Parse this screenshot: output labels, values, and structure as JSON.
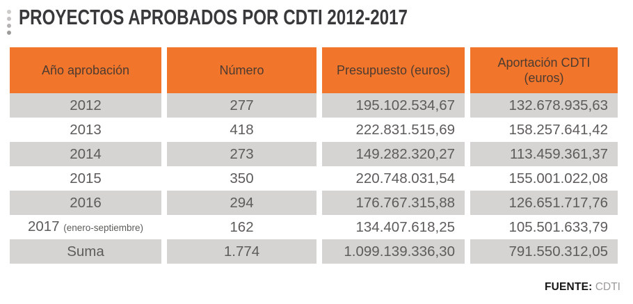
{
  "title": "PROYECTOS APROBADOS POR CDTI 2012-2017",
  "colors": {
    "header_bg": "#f1762c",
    "stripe_bg": "#d5d4d2",
    "header_text": "#4d3b30",
    "body_text": "#5d5c5a"
  },
  "table": {
    "columns": [
      {
        "label": "Año aprobación"
      },
      {
        "label": "Número"
      },
      {
        "label": "Presupuesto (euros)"
      },
      {
        "label": "Aportación CDTI\n(euros)"
      }
    ],
    "rows": [
      {
        "year": "2012",
        "number": "277",
        "budget": "195.102.534,67",
        "contribution": "132.678.935,63"
      },
      {
        "year": "2013",
        "number": "418",
        "budget": "222.831.515,69",
        "contribution": "158.257.641,42"
      },
      {
        "year": "2014",
        "number": "273",
        "budget": "149.282.320,27",
        "contribution": "113.459.361,37"
      },
      {
        "year": "2015",
        "number": "350",
        "budget": "220.748.031,54",
        "contribution": "155.001.022,08"
      },
      {
        "year": "2016",
        "number": "294",
        "budget": "176.767.315,88",
        "contribution": "126.651.717,76"
      },
      {
        "year": "2017",
        "year_note": "(enero-septiembre)",
        "number": "162",
        "budget": "134.407.618,25",
        "contribution": "105.501.633,79"
      },
      {
        "year": "Suma",
        "number": "1.774",
        "budget": "1.099.139.336,30",
        "contribution": "791.550.312,05"
      }
    ]
  },
  "footer": {
    "source_label": "FUENTE:",
    "source_value": "CDTI"
  },
  "chart_data": {
    "type": "table",
    "title": "PROYECTOS APROBADOS POR CDTI 2012-2017",
    "columns": [
      "Año aprobación",
      "Número",
      "Presupuesto (euros)",
      "Aportación CDTI (euros)"
    ],
    "rows": [
      [
        "2012",
        277,
        "195.102.534,67",
        "132.678.935,63"
      ],
      [
        "2013",
        418,
        "222.831.515,69",
        "158.257.641,42"
      ],
      [
        "2014",
        273,
        "149.282.320,27",
        "113.459.361,37"
      ],
      [
        "2015",
        350,
        "220.748.031,54",
        "155.001.022,08"
      ],
      [
        "2016",
        294,
        "176.767.315,88",
        "126.651.717,76"
      ],
      [
        "2017 (enero-septiembre)",
        162,
        "134.407.618,25",
        "105.501.633,79"
      ],
      [
        "Suma",
        1774,
        "1.099.139.336,30",
        "791.550.312,05"
      ]
    ],
    "source": "FUENTE: CDTI"
  }
}
